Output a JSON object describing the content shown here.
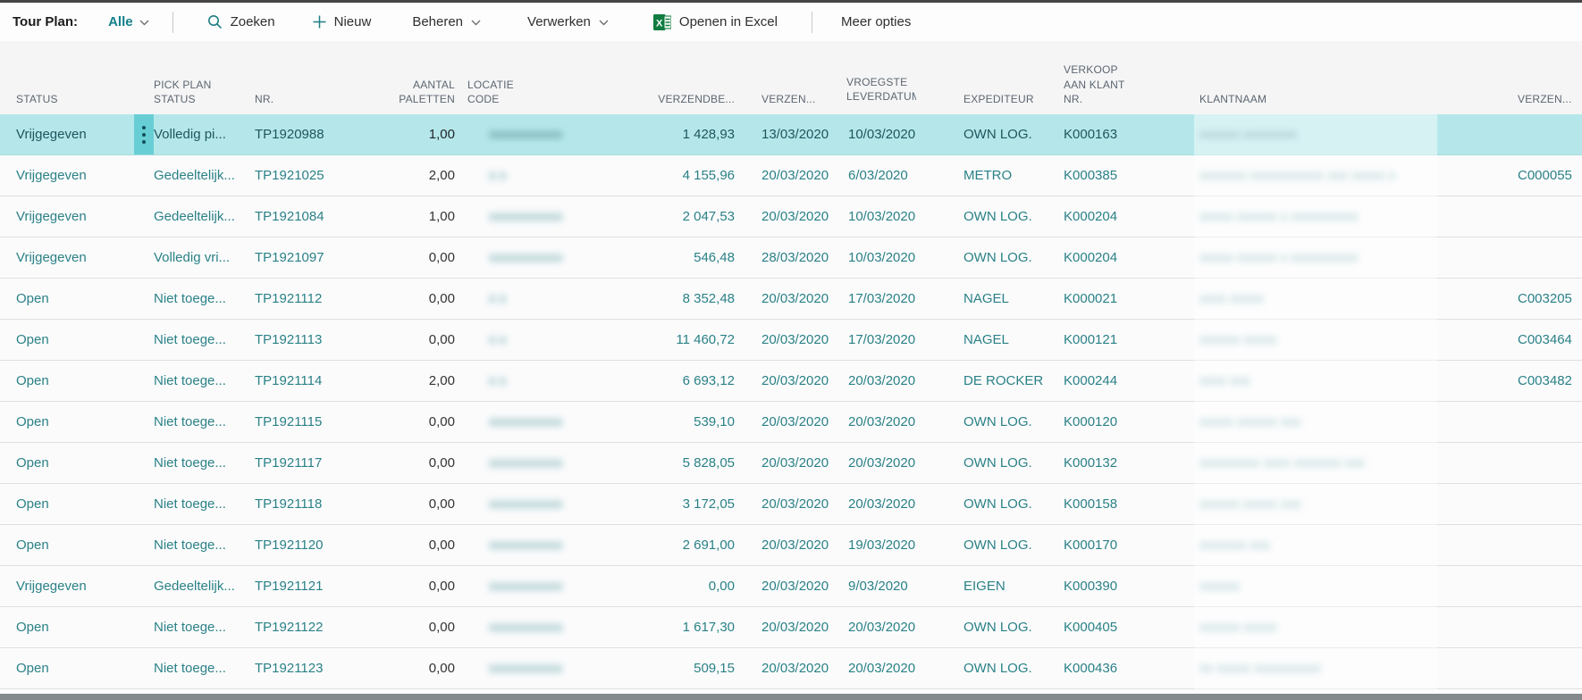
{
  "toolbar": {
    "title": "Tour Plan:",
    "filter_value": "Alle",
    "search": "Zoeken",
    "new": "Nieuw",
    "manage": "Beheren",
    "process": "Verwerken",
    "open_in_excel": "Openen in Excel",
    "more_options": "Meer opties"
  },
  "columns": {
    "status": "STATUS",
    "pick_plan_status": "PICK PLAN\nSTATUS",
    "nr": "NR.",
    "aantal_paletten": "AANTAL\nPALETTEN",
    "locatie_code": "LOCATIE\nCODE",
    "verzendbedrag": "VERZENDBE...",
    "verzenddatum": "VERZEN...",
    "vroegste_leverdatum": "VROEGSTE\nLEVERDATUM",
    "expediteur": "EXPEDITEUR",
    "verkoop_aan_klant_nr": "VERKOOP\nAAN KLANT\nNR.",
    "klantnaam": "KLANTNAAM",
    "verzenddatum_2": "VERZEN..."
  },
  "colors": {
    "accent_teal": "#12808a",
    "row_link_teal": "#2a8186",
    "selected_row_bg": "#b5e7ea",
    "selected_menu_bg": "#67ced5",
    "excel_green": "#107c41",
    "header_text": "#5c6670"
  },
  "rows": [
    {
      "selected": true,
      "status": "Vrijgegeven",
      "pick_plan_status": "Volledig pi...",
      "nr": "TP1920988",
      "aantal_paletten": "1,00",
      "locatie_code": "xxxxxxxxxxx",
      "verzendbedrag": "1 428,93",
      "verzenddatum": "13/03/2020",
      "vroegste_leverdatum": "10/03/2020",
      "expediteur": "OWN LOG.",
      "verkoop_aan_klant_nr": "K000163",
      "klantnaam": "xxxxxx xxxxxxxx",
      "verzenddatum_2": ""
    },
    {
      "selected": false,
      "status": "Vrijgegeven",
      "pick_plan_status": "Gedeeltelijk...",
      "nr": "TP1921025",
      "aantal_paletten": "2,00",
      "locatie_code": "x x",
      "verzendbedrag": "4 155,96",
      "verzenddatum": "20/03/2020",
      "vroegste_leverdatum": "6/03/2020",
      "expediteur": "METRO",
      "verkoop_aan_klant_nr": "K000385",
      "klantnaam": "xxxxxxx xxxxxxxxxxx xxx xxxxx x",
      "verzenddatum_2": "C000055"
    },
    {
      "selected": false,
      "status": "Vrijgegeven",
      "pick_plan_status": "Gedeeltelijk...",
      "nr": "TP1921084",
      "aantal_paletten": "1,00",
      "locatie_code": "xxxxxxxxxxx",
      "verzendbedrag": "2 047,53",
      "verzenddatum": "20/03/2020",
      "vroegste_leverdatum": "10/03/2020",
      "expediteur": "OWN LOG.",
      "verkoop_aan_klant_nr": "K000204",
      "klantnaam": "xxxxx xxxxxx x xxxxxxxxxx",
      "verzenddatum_2": ""
    },
    {
      "selected": false,
      "status": "Vrijgegeven",
      "pick_plan_status": "Volledig vri...",
      "nr": "TP1921097",
      "aantal_paletten": "0,00",
      "locatie_code": "xxxxxxxxxxx",
      "verzendbedrag": "546,48",
      "verzenddatum": "28/03/2020",
      "vroegste_leverdatum": "10/03/2020",
      "expediteur": "OWN LOG.",
      "verkoop_aan_klant_nr": "K000204",
      "klantnaam": "xxxxx xxxxxx x xxxxxxxxxx",
      "verzenddatum_2": ""
    },
    {
      "selected": false,
      "status": "Open",
      "pick_plan_status": "Niet toege...",
      "nr": "TP1921112",
      "aantal_paletten": "0,00",
      "locatie_code": "x x",
      "verzendbedrag": "8 352,48",
      "verzenddatum": "20/03/2020",
      "vroegste_leverdatum": "17/03/2020",
      "expediteur": "NAGEL",
      "verkoop_aan_klant_nr": "K000021",
      "klantnaam": "xxxx xxxxx",
      "verzenddatum_2": "C003205"
    },
    {
      "selected": false,
      "status": "Open",
      "pick_plan_status": "Niet toege...",
      "nr": "TP1921113",
      "aantal_paletten": "0,00",
      "locatie_code": "x x",
      "verzendbedrag": "11 460,72",
      "verzenddatum": "20/03/2020",
      "vroegste_leverdatum": "17/03/2020",
      "expediteur": "NAGEL",
      "verkoop_aan_klant_nr": "K000121",
      "klantnaam": "xxxxxx xxxxx",
      "verzenddatum_2": "C003464"
    },
    {
      "selected": false,
      "status": "Open",
      "pick_plan_status": "Niet toege...",
      "nr": "TP1921114",
      "aantal_paletten": "2,00",
      "locatie_code": "x x",
      "verzendbedrag": "6 693,12",
      "verzenddatum": "20/03/2020",
      "vroegste_leverdatum": "20/03/2020",
      "expediteur": "DE ROCKER",
      "verkoop_aan_klant_nr": "K000244",
      "klantnaam": "xxxx xxx",
      "verzenddatum_2": "C003482"
    },
    {
      "selected": false,
      "status": "Open",
      "pick_plan_status": "Niet toege...",
      "nr": "TP1921115",
      "aantal_paletten": "0,00",
      "locatie_code": "xxxxxxxxxxx",
      "verzendbedrag": "539,10",
      "verzenddatum": "20/03/2020",
      "vroegste_leverdatum": "20/03/2020",
      "expediteur": "OWN LOG.",
      "verkoop_aan_klant_nr": "K000120",
      "klantnaam": "xxxxx xxxxxx xxx",
      "verzenddatum_2": ""
    },
    {
      "selected": false,
      "status": "Open",
      "pick_plan_status": "Niet toege...",
      "nr": "TP1921117",
      "aantal_paletten": "0,00",
      "locatie_code": "xxxxxxxxxxx",
      "verzendbedrag": "5 828,05",
      "verzenddatum": "20/03/2020",
      "vroegste_leverdatum": "20/03/2020",
      "expediteur": "OWN LOG.",
      "verkoop_aan_klant_nr": "K000132",
      "klantnaam": "xxxxxxxxx xxxx xxxxxxx xxx",
      "verzenddatum_2": ""
    },
    {
      "selected": false,
      "status": "Open",
      "pick_plan_status": "Niet toege...",
      "nr": "TP1921118",
      "aantal_paletten": "0,00",
      "locatie_code": "xxxxxxxxxxx",
      "verzendbedrag": "3 172,05",
      "verzenddatum": "20/03/2020",
      "vroegste_leverdatum": "20/03/2020",
      "expediteur": "OWN LOG.",
      "verkoop_aan_klant_nr": "K000158",
      "klantnaam": "xxxxxx xxxxx xxx",
      "verzenddatum_2": ""
    },
    {
      "selected": false,
      "status": "Open",
      "pick_plan_status": "Niet toege...",
      "nr": "TP1921120",
      "aantal_paletten": "0,00",
      "locatie_code": "xxxxxxxxxxx",
      "verzendbedrag": "2 691,00",
      "verzenddatum": "20/03/2020",
      "vroegste_leverdatum": "19/03/2020",
      "expediteur": "OWN LOG.",
      "verkoop_aan_klant_nr": "K000170",
      "klantnaam": "xxxxxxx xxx",
      "verzenddatum_2": ""
    },
    {
      "selected": false,
      "status": "Vrijgegeven",
      "pick_plan_status": "Gedeeltelijk...",
      "nr": "TP1921121",
      "aantal_paletten": "0,00",
      "locatie_code": "xxxxxxxxxxx",
      "verzendbedrag": "0,00",
      "verzenddatum": "20/03/2020",
      "vroegste_leverdatum": "9/03/2020",
      "expediteur": "EIGEN",
      "verkoop_aan_klant_nr": "K000390",
      "klantnaam": "xxxxxx",
      "verzenddatum_2": ""
    },
    {
      "selected": false,
      "status": "Open",
      "pick_plan_status": "Niet toege...",
      "nr": "TP1921122",
      "aantal_paletten": "0,00",
      "locatie_code": "xxxxxxxxxxx",
      "verzendbedrag": "1 617,30",
      "verzenddatum": "20/03/2020",
      "vroegste_leverdatum": "20/03/2020",
      "expediteur": "OWN LOG.",
      "verkoop_aan_klant_nr": "K000405",
      "klantnaam": "xxxxxx xxxxx",
      "verzenddatum_2": ""
    },
    {
      "selected": false,
      "status": "Open",
      "pick_plan_status": "Niet toege...",
      "nr": "TP1921123",
      "aantal_paletten": "0,00",
      "locatie_code": "xxxxxxxxxxx",
      "verzendbedrag": "509,15",
      "verzenddatum": "20/03/2020",
      "vroegste_leverdatum": "20/03/2020",
      "expediteur": "OWN LOG.",
      "verkoop_aan_klant_nr": "K000436",
      "klantnaam": "xx xxxxx xxxxxxxxxx",
      "verzenddatum_2": ""
    }
  ]
}
